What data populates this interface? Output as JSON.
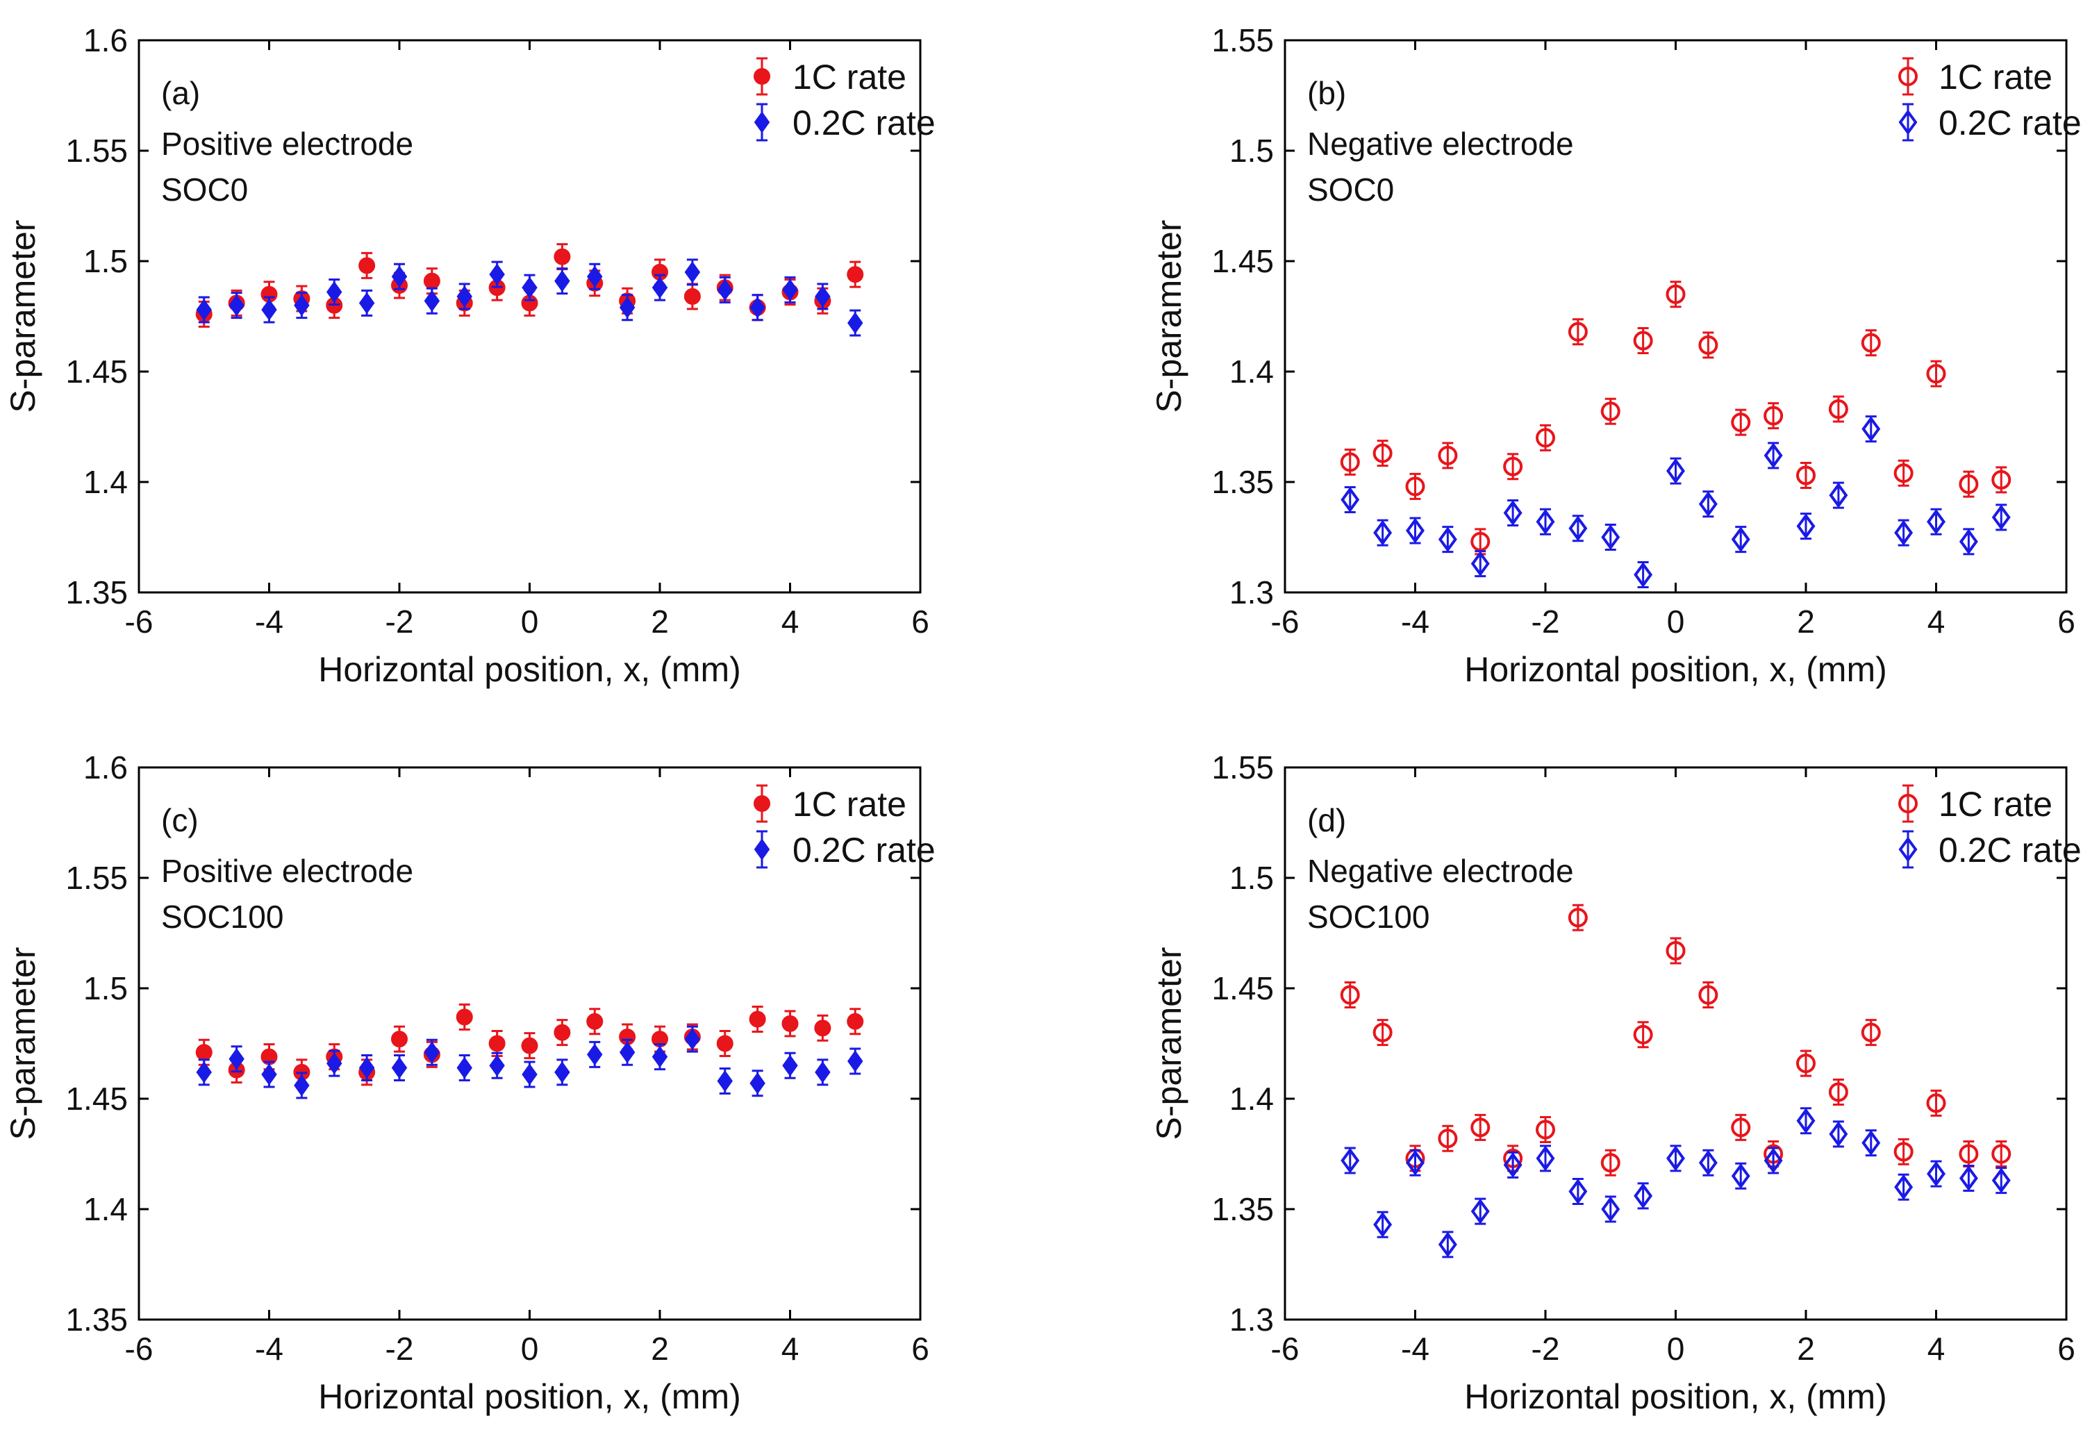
{
  "chart_data": [
    {
      "panel": "(a)",
      "type": "scatter",
      "annotations": [
        "Positive electrode",
        "SOC0"
      ],
      "xlabel": "Horizontal position, x, (mm)",
      "ylabel": "S-parameter",
      "xlim": [
        -6,
        6
      ],
      "ylim": [
        1.35,
        1.6
      ],
      "xticks": [
        -6,
        -4,
        -2,
        0,
        2,
        4,
        6
      ],
      "yticks": [
        1.35,
        1.4,
        1.45,
        1.5,
        1.55,
        1.6
      ],
      "xtick_labels": [
        "-6",
        "-4",
        "-2",
        "0",
        "2",
        "4",
        "6"
      ],
      "ytick_labels": [
        "1.35",
        "1.4",
        "1.45",
        "1.5",
        "1.55",
        "1.6"
      ],
      "legend_position": "top-right",
      "x": [
        -5,
        -4.5,
        -4,
        -3.5,
        -3,
        -2.5,
        -2,
        -1.5,
        -1,
        -0.5,
        0,
        0.5,
        1,
        1.5,
        2,
        2.5,
        3,
        3.5,
        4,
        4.5,
        5
      ],
      "series": [
        {
          "name": "1C rate",
          "color": "#e8151b",
          "marker": "filled-circle",
          "error": 0.003,
          "values": [
            1.476,
            1.481,
            1.485,
            1.483,
            1.48,
            1.498,
            1.489,
            1.491,
            1.481,
            1.488,
            1.481,
            1.502,
            1.49,
            1.482,
            1.495,
            1.484,
            1.488,
            1.479,
            1.486,
            1.482,
            1.494
          ]
        },
        {
          "name": "0.2C rate",
          "color": "#1a1ae6",
          "marker": "filled-diamond",
          "error": 0.003,
          "values": [
            1.478,
            1.48,
            1.478,
            1.48,
            1.486,
            1.481,
            1.493,
            1.482,
            1.484,
            1.494,
            1.488,
            1.491,
            1.493,
            1.479,
            1.488,
            1.495,
            1.487,
            1.479,
            1.487,
            1.484,
            1.472
          ]
        }
      ]
    },
    {
      "panel": "(b)",
      "type": "scatter",
      "annotations": [
        "Negative electrode",
        "SOC0"
      ],
      "xlabel": "Horizontal position, x, (mm)",
      "ylabel": "S-parameter",
      "xlim": [
        -6,
        6
      ],
      "ylim": [
        1.3,
        1.55
      ],
      "xticks": [
        -6,
        -4,
        -2,
        0,
        2,
        4,
        6
      ],
      "yticks": [
        1.3,
        1.35,
        1.4,
        1.45,
        1.5,
        1.55
      ],
      "xtick_labels": [
        "-6",
        "-4",
        "-2",
        "0",
        "2",
        "4",
        "6"
      ],
      "ytick_labels": [
        "1.3",
        "1.35",
        "1.4",
        "1.45",
        "1.5",
        "1.55"
      ],
      "legend_position": "top-right",
      "x": [
        -5,
        -4.5,
        -4,
        -3.5,
        -3,
        -2.5,
        -2,
        -1.5,
        -1,
        -0.5,
        0,
        0.5,
        1,
        1.5,
        2,
        2.5,
        3,
        3.5,
        4,
        4.5,
        5
      ],
      "series": [
        {
          "name": "1C rate",
          "color": "#e8151b",
          "marker": "open-circle",
          "error": 0.004,
          "values": [
            1.359,
            1.363,
            1.348,
            1.362,
            1.323,
            1.357,
            1.37,
            1.418,
            1.382,
            1.414,
            1.435,
            1.412,
            1.377,
            1.38,
            1.353,
            1.383,
            1.413,
            1.354,
            1.399,
            1.349,
            1.351
          ]
        },
        {
          "name": "0.2C rate",
          "color": "#1a1ae6",
          "marker": "open-diamond",
          "error": 0.004,
          "values": [
            1.342,
            1.327,
            1.328,
            1.324,
            1.313,
            1.336,
            1.332,
            1.329,
            1.325,
            1.308,
            1.355,
            1.34,
            1.324,
            1.362,
            1.33,
            1.344,
            1.374,
            1.327,
            1.332,
            1.323,
            1.334
          ]
        }
      ]
    },
    {
      "panel": "(c)",
      "type": "scatter",
      "annotations": [
        "Positive electrode",
        "SOC100"
      ],
      "xlabel": "Horizontal position, x, (mm)",
      "ylabel": "S-parameter",
      "xlim": [
        -6,
        6
      ],
      "ylim": [
        1.35,
        1.6
      ],
      "xticks": [
        -6,
        -4,
        -2,
        0,
        2,
        4,
        6
      ],
      "yticks": [
        1.35,
        1.4,
        1.45,
        1.5,
        1.55,
        1.6
      ],
      "xtick_labels": [
        "-6",
        "-4",
        "-2",
        "0",
        "2",
        "4",
        "6"
      ],
      "ytick_labels": [
        "1.35",
        "1.4",
        "1.45",
        "1.5",
        "1.55",
        "1.6"
      ],
      "legend_position": "top-right",
      "x": [
        -5,
        -4.5,
        -4,
        -3.5,
        -3,
        -2.5,
        -2,
        -1.5,
        -1,
        -0.5,
        0,
        0.5,
        1,
        1.5,
        2,
        2.5,
        3,
        3.5,
        4,
        4.5,
        5
      ],
      "series": [
        {
          "name": "1C rate",
          "color": "#e8151b",
          "marker": "filled-circle",
          "error": 0.004,
          "values": [
            1.471,
            1.463,
            1.469,
            1.462,
            1.469,
            1.462,
            1.477,
            1.47,
            1.487,
            1.475,
            1.474,
            1.48,
            1.485,
            1.478,
            1.477,
            1.478,
            1.475,
            1.486,
            1.484,
            1.482,
            1.485
          ]
        },
        {
          "name": "0.2C rate",
          "color": "#1a1ae6",
          "marker": "filled-diamond",
          "error": 0.004,
          "values": [
            1.462,
            1.468,
            1.461,
            1.456,
            1.466,
            1.464,
            1.464,
            1.471,
            1.464,
            1.465,
            1.461,
            1.462,
            1.47,
            1.471,
            1.469,
            1.477,
            1.458,
            1.457,
            1.465,
            1.462,
            1.467
          ]
        }
      ]
    },
    {
      "panel": "(d)",
      "type": "scatter",
      "annotations": [
        "Negative electrode",
        "SOC100"
      ],
      "xlabel": "Horizontal position, x, (mm)",
      "ylabel": "S-parameter",
      "xlim": [
        -6,
        6
      ],
      "ylim": [
        1.3,
        1.55
      ],
      "xticks": [
        -6,
        -4,
        -2,
        0,
        2,
        4,
        6
      ],
      "yticks": [
        1.3,
        1.35,
        1.4,
        1.45,
        1.5,
        1.55
      ],
      "xtick_labels": [
        "-6",
        "-4",
        "-2",
        "0",
        "2",
        "4",
        "6"
      ],
      "ytick_labels": [
        "1.3",
        "1.35",
        "1.4",
        "1.45",
        "1.5",
        "1.55"
      ],
      "legend_position": "top-right",
      "x": [
        -5,
        -4.5,
        -4,
        -3.5,
        -3,
        -2.5,
        -2,
        -1.5,
        -1,
        -0.5,
        0,
        0.5,
        1,
        1.5,
        2,
        2.5,
        3,
        3.5,
        4,
        4.5,
        5
      ],
      "series": [
        {
          "name": "1C rate",
          "color": "#e8151b",
          "marker": "open-circle",
          "error": 0.003,
          "values": [
            1.447,
            1.43,
            1.373,
            1.382,
            1.387,
            1.373,
            1.386,
            1.482,
            1.371,
            1.429,
            1.467,
            1.447,
            1.387,
            1.375,
            1.416,
            1.403,
            1.43,
            1.376,
            1.398,
            1.375,
            1.375
          ]
        },
        {
          "name": "0.2C rate",
          "color": "#1a1ae6",
          "marker": "open-diamond",
          "error": 0.003,
          "values": [
            1.372,
            1.343,
            1.371,
            1.334,
            1.349,
            1.37,
            1.373,
            1.358,
            1.35,
            1.356,
            1.373,
            1.371,
            1.365,
            1.372,
            1.39,
            1.384,
            1.38,
            1.36,
            1.366,
            1.364,
            1.363
          ]
        }
      ]
    }
  ]
}
